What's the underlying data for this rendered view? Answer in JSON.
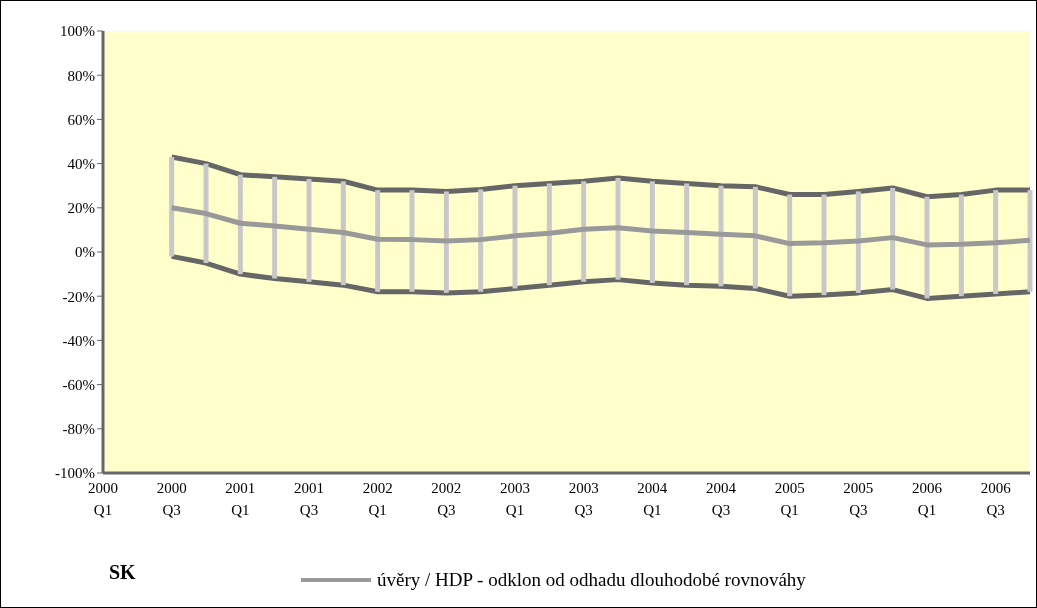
{
  "chart_data": {
    "type": "line",
    "categories": [
      "2000 Q1",
      null,
      "2000 Q3",
      null,
      "2001 Q1",
      null,
      "2001 Q3",
      null,
      "2002 Q1",
      null,
      "2002 Q3",
      null,
      "2003 Q1",
      null,
      "2003 Q3",
      null,
      "2004 Q1",
      null,
      "2004 Q3",
      null,
      "2005 Q1",
      null,
      "2005 Q3",
      null,
      "2006 Q1",
      null,
      "2006 Q3",
      null
    ],
    "series": [
      {
        "name": "úvěry / HDP  - odklon od odhadu dlouhodobé rovnováhy",
        "color": "#999999",
        "values": [
          null,
          null,
          20,
          17.4,
          13,
          11.8,
          10.3,
          8.8,
          5.8,
          5.6,
          5,
          5.6,
          7.3,
          8.5,
          10.3,
          11,
          9.5,
          8.8,
          8,
          7.3,
          3.8,
          4.2,
          5,
          6.5,
          3.2,
          3.5,
          4.2,
          5.3
        ],
        "errors": [
          null,
          null,
          [
            -2,
            43
          ],
          [
            -5,
            40
          ],
          [
            -10,
            35
          ],
          [
            -12,
            34
          ],
          [
            -13.5,
            33
          ],
          [
            -15,
            32
          ],
          [
            -18,
            28
          ],
          [
            -18,
            28
          ],
          [
            -18.5,
            27.4
          ],
          [
            -18,
            28.3
          ],
          [
            -16.5,
            30
          ],
          [
            -15,
            31
          ],
          [
            -13.5,
            32
          ],
          [
            -12.5,
            33.5
          ],
          [
            -14,
            32
          ],
          [
            -15,
            31
          ],
          [
            -15.5,
            30
          ],
          [
            -16.5,
            29.5
          ],
          [
            -20,
            26
          ],
          [
            -19.5,
            26
          ],
          [
            -18.5,
            27.4
          ],
          [
            -17,
            29
          ],
          [
            -21,
            25
          ],
          [
            -20,
            26
          ],
          [
            -19,
            28
          ],
          [
            -18,
            28
          ]
        ]
      },
      {
        "color": "#666666",
        "values": [
          null,
          null,
          43,
          40,
          35,
          34,
          33,
          32,
          28,
          28,
          27.4,
          28.3,
          30,
          31,
          32,
          33.5,
          32,
          31,
          30,
          29.5,
          26,
          26,
          27.4,
          29,
          25,
          26,
          28,
          28
        ]
      },
      {
        "color": "#666666",
        "values": [
          null,
          null,
          -2,
          -5,
          -10,
          -12,
          -13.5,
          -15,
          -18,
          -18,
          -18.5,
          -18,
          -16.5,
          -15,
          -13.5,
          -12.5,
          -14,
          -15,
          -15.5,
          -16.5,
          -20,
          -19.5,
          -18.5,
          -17,
          -21,
          -20,
          -19,
          -18
        ]
      }
    ],
    "ylim": [
      -100,
      100
    ],
    "yticks": [
      {
        "value": -100,
        "label": "-100%"
      },
      {
        "value": -80,
        "label": "-80%"
      },
      {
        "value": -60,
        "label": "-60%"
      },
      {
        "value": -40,
        "label": "-40%"
      },
      {
        "value": -20,
        "label": "-20%"
      },
      {
        "value": 0,
        "label": "0%"
      },
      {
        "value": 20,
        "label": "20%"
      },
      {
        "value": 40,
        "label": "40%"
      },
      {
        "value": 60,
        "label": "60%"
      },
      {
        "value": 80,
        "label": "80%"
      },
      {
        "value": 100,
        "label": "100%"
      }
    ],
    "annotations": [
      "SK"
    ],
    "legend": "bottom",
    "marker": "none",
    "line_style": "solid"
  }
}
